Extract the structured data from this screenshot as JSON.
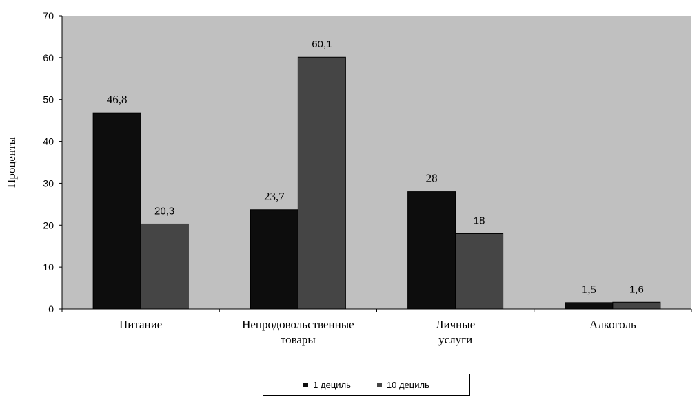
{
  "chart_data": {
    "type": "bar",
    "title": "",
    "xlabel": "",
    "ylabel": "Проценты",
    "ylim": [
      0,
      70
    ],
    "yticks": [
      0,
      10,
      20,
      30,
      40,
      50,
      60,
      70
    ],
    "grid": false,
    "legend_position": "bottom",
    "categories": [
      [
        "Питание"
      ],
      [
        "Непродовольственные",
        "товары"
      ],
      [
        "Личные",
        "услуги"
      ],
      [
        "Алкоголь"
      ]
    ],
    "series": [
      {
        "name": "1 дециль",
        "color": "#0d0d0d",
        "values": [
          46.8,
          23.7,
          28,
          1.5
        ],
        "labels": [
          "46,8",
          "23,7",
          "28",
          "1,5"
        ]
      },
      {
        "name": "10 дециль",
        "color": "#454545",
        "values": [
          20.3,
          60.1,
          18,
          1.6
        ],
        "labels": [
          "20,3",
          "60,1",
          "18",
          "1,6"
        ]
      }
    ],
    "colors": {
      "plot_background": "#c0c0c0",
      "bar_outline": "#000000",
      "axis": "#000000"
    }
  }
}
